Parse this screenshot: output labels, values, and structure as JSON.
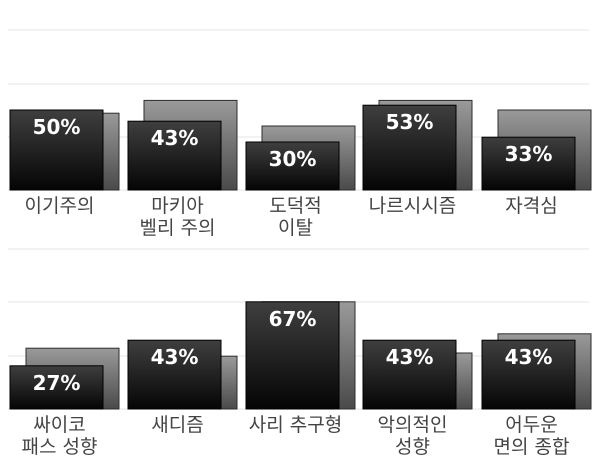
{
  "chart_data": [
    {
      "type": "bar",
      "categories": [
        [
          "이기주의"
        ],
        [
          "마키아",
          "벨리 주의"
        ],
        [
          "도덕적",
          "이탈"
        ],
        [
          "나르시시즘"
        ],
        [
          "자격심"
        ]
      ],
      "values": [
        50,
        43,
        30,
        53,
        33
      ],
      "value_labels": [
        "50%",
        "43%",
        "30%",
        "53%",
        "33%"
      ],
      "shadow_values": [
        48,
        56,
        40,
        56,
        50
      ],
      "ylim": [
        0,
        100
      ],
      "grid": true
    },
    {
      "type": "bar",
      "categories": [
        [
          "싸이코",
          "패스 성향"
        ],
        [
          "새디즘"
        ],
        [
          "사리 추구형"
        ],
        [
          "악의적인",
          "성향"
        ],
        [
          "어두운",
          "면의 종합"
        ]
      ],
      "values": [
        27,
        43,
        67,
        43,
        43
      ],
      "value_labels": [
        "27%",
        "43%",
        "67%",
        "43%",
        "43%"
      ],
      "shadow_values": [
        38,
        33,
        67,
        35,
        47
      ],
      "ylim": [
        0,
        100
      ],
      "grid": true
    }
  ],
  "colors": {
    "front_top": "#3f3f3f",
    "front_bottom": "#050505",
    "shadow_top": "#9a9a9a",
    "shadow_bottom": "#4a4a4a",
    "value_text": "#ffffff",
    "category_text": "#444444",
    "grid": "#e6e6e6"
  }
}
